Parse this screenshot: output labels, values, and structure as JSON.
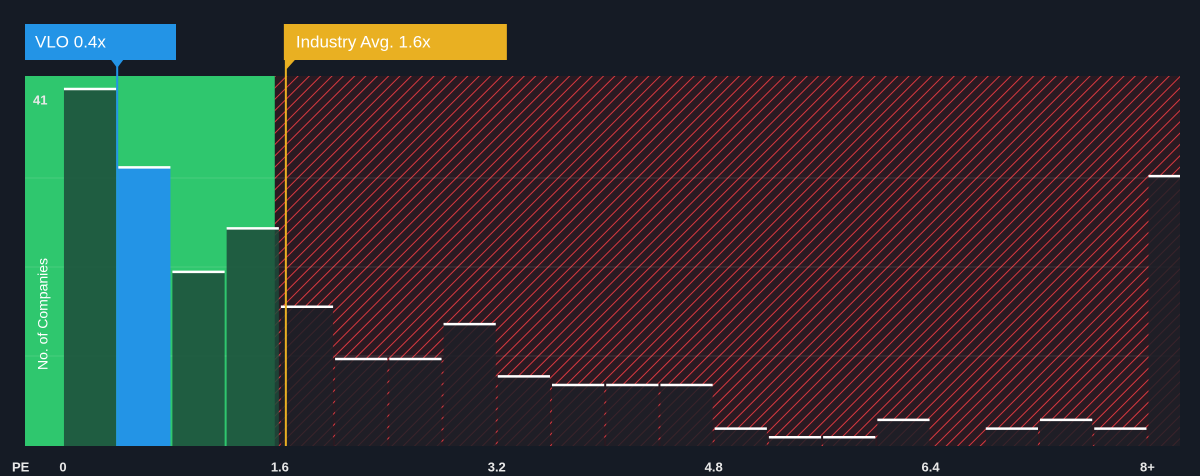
{
  "chart_data": {
    "type": "histogram",
    "x_label": "PE",
    "y_label": "No. of Companies",
    "bins": [
      0,
      0.4,
      0.8,
      1.2,
      1.6,
      2.0,
      2.4,
      2.8,
      3.2,
      3.6,
      4.0,
      4.4,
      4.8,
      5.2,
      5.6,
      6.0,
      6.4,
      6.8,
      7.2,
      7.6,
      8.0,
      8.4
    ],
    "values": [
      41,
      32,
      20,
      25,
      16,
      10,
      10,
      14,
      8,
      7,
      7,
      7,
      2,
      1,
      1,
      3,
      0,
      2,
      3,
      2,
      31
    ],
    "color": "#1d2027",
    "highlight_color": "#2394e6",
    "xlim": [
      -0.28,
      8.24
    ],
    "ylim": [
      0,
      42.5
    ],
    "xticks": [
      0,
      1.6,
      3.2,
      4.8,
      6.4,
      {
        "value": 8,
        "label": "8+"
      }
    ],
    "yticks": [
      41
    ],
    "annotations": [
      {
        "label": "VLO 0.4x",
        "x": 0.4,
        "color": "#2394e6"
      },
      {
        "label": "Industry Avg. 1.6x",
        "x": 1.6,
        "color": "#e9b022"
      }
    ]
  }
}
